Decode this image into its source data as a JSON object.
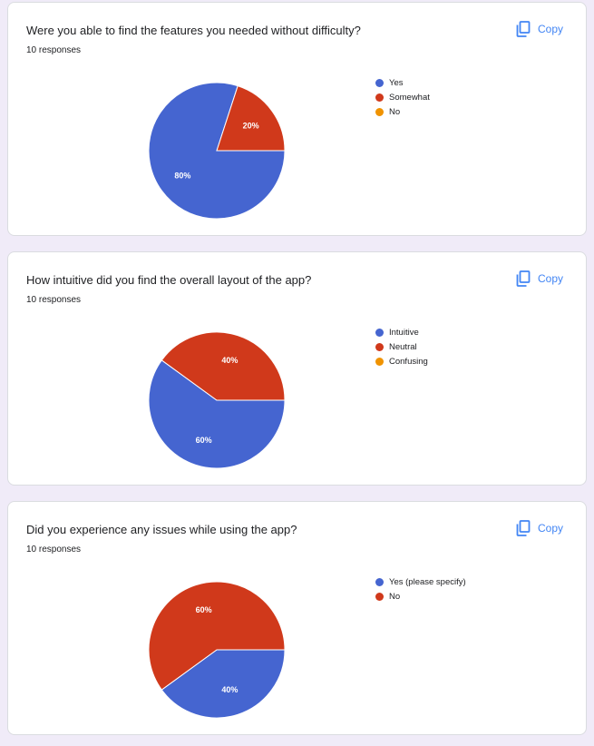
{
  "copy_label": "Copy",
  "responses_label": "10 responses",
  "colors": {
    "blue": "#4565d0",
    "red": "#d0391b",
    "orange": "#f09300"
  },
  "chart_data": [
    {
      "type": "pie",
      "title": "Were you able to find the features you needed without difficulty?",
      "categories": [
        "Yes",
        "Somewhat",
        "No"
      ],
      "values": [
        80,
        20,
        0
      ],
      "value_labels": [
        "80%",
        "20%",
        ""
      ],
      "colors": [
        "#4565d0",
        "#d0391b",
        "#f09300"
      ],
      "legend": "right"
    },
    {
      "type": "pie",
      "title": "How intuitive did you find the overall layout of the app?",
      "categories": [
        "Intuitive",
        "Neutral",
        "Confusing"
      ],
      "values": [
        60,
        40,
        0
      ],
      "value_labels": [
        "60%",
        "40%",
        ""
      ],
      "colors": [
        "#4565d0",
        "#d0391b",
        "#f09300"
      ],
      "legend": "right"
    },
    {
      "type": "pie",
      "title": "Did you experience any issues while using the app?",
      "categories": [
        "Yes (please specify)",
        "No"
      ],
      "values": [
        40,
        60
      ],
      "value_labels": [
        "40%",
        "60%"
      ],
      "colors": [
        "#4565d0",
        "#d0391b"
      ],
      "legend": "right"
    }
  ]
}
